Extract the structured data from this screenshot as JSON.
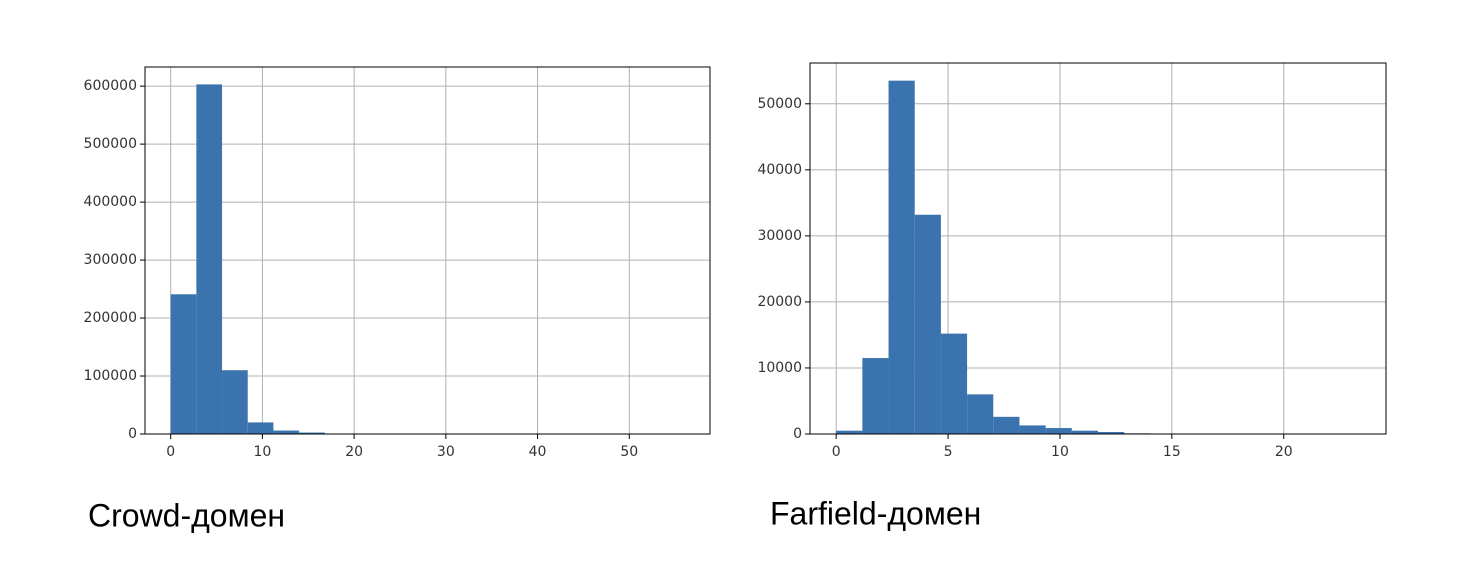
{
  "chart_data": [
    {
      "type": "histogram",
      "caption": "Crowd-домен",
      "color": "#3a73ae",
      "grid": true,
      "bins": [
        0,
        2.8,
        5.6,
        8.4,
        11.2,
        14,
        16.8,
        19.6,
        22.4,
        25.2,
        28,
        30.8,
        33.6,
        36.4,
        39.2,
        42,
        44.8,
        47.6,
        50.4,
        53.2,
        56
      ],
      "counts": [
        241000,
        603000,
        110000,
        20000,
        6000,
        2500,
        800,
        300,
        150,
        80,
        50,
        30,
        20,
        10,
        5,
        3,
        2,
        1,
        1,
        1
      ],
      "xlim": [
        -2.8,
        58.8
      ],
      "xticks": [
        0,
        10,
        20,
        30,
        40,
        50
      ],
      "ylim": [
        0,
        633000
      ],
      "yticks": [
        0,
        100000,
        200000,
        300000,
        400000,
        500000,
        600000
      ]
    },
    {
      "type": "histogram",
      "caption": "Farfield-домен",
      "color": "#3a73ae",
      "grid": true,
      "bins": [
        0,
        1.17,
        2.34,
        3.51,
        4.68,
        5.85,
        7.02,
        8.19,
        9.36,
        10.53,
        11.7,
        12.87,
        14.04,
        15.21,
        16.38,
        17.55,
        18.72,
        19.89,
        21.06,
        22.23,
        23.4
      ],
      "counts": [
        500,
        11500,
        53500,
        33200,
        15200,
        6000,
        2600,
        1300,
        900,
        500,
        300,
        100,
        50,
        30,
        20,
        10,
        5,
        3,
        2,
        1
      ],
      "xlim": [
        -1.17,
        24.57
      ],
      "xticks": [
        0,
        5,
        10,
        15,
        20
      ],
      "ylim": [
        0,
        56175
      ],
      "yticks": [
        0,
        10000,
        20000,
        30000,
        40000,
        50000
      ]
    }
  ]
}
